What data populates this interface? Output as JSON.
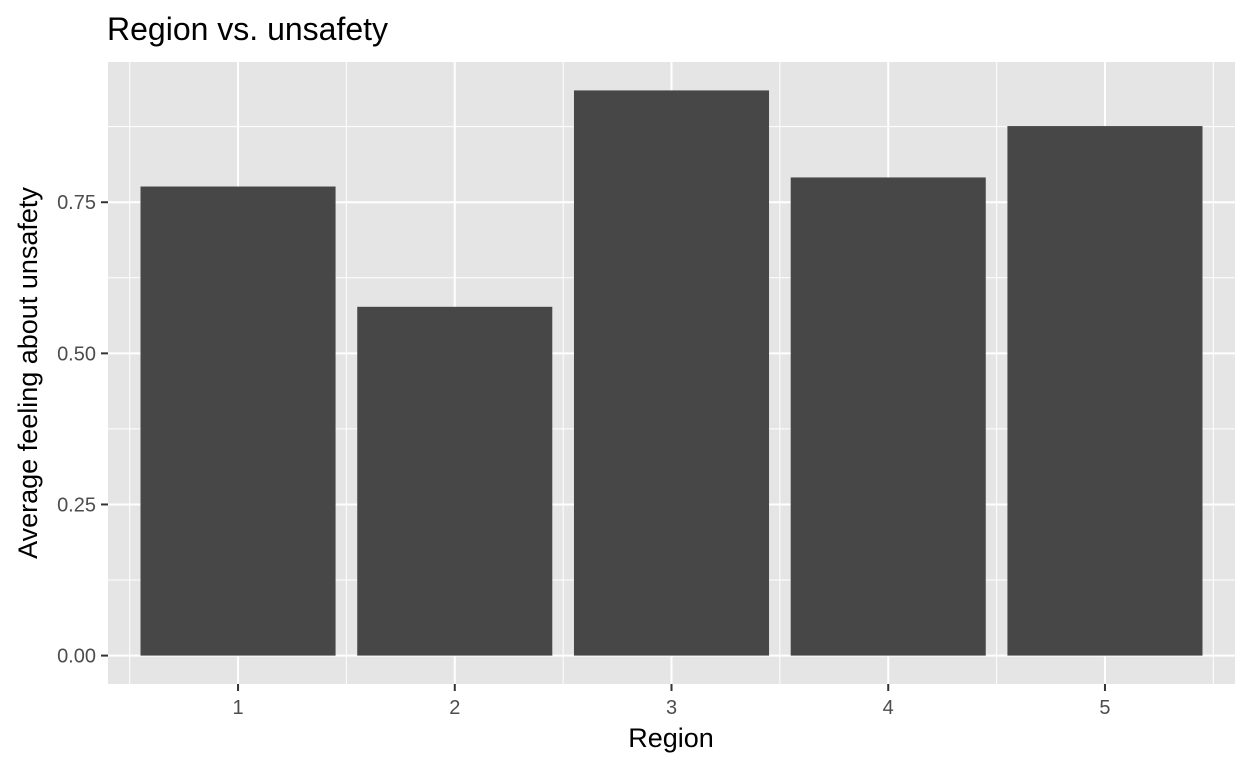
{
  "chart_data": {
    "type": "bar",
    "title": "Region vs. unsafety",
    "xlabel": "Region",
    "ylabel": "Average feeling about unsafety",
    "categories": [
      "1",
      "2",
      "3",
      "4",
      "5"
    ],
    "values": [
      0.776,
      0.577,
      0.935,
      0.791,
      0.876
    ],
    "ylim": [
      -0.047,
      0.982
    ],
    "yticks": [
      0.0,
      0.25,
      0.5,
      0.75
    ],
    "ytick_labels": [
      "0.00",
      "0.25",
      "0.50",
      "0.75"
    ],
    "grid": true,
    "legend": "none",
    "colors": {
      "panel_background": "#e5e5e5",
      "grid_line": "#ffffff",
      "bar_fill": "#474747",
      "tick_text": "#4d4d4d",
      "tick_mark": "#333333",
      "title_text": "#000000"
    }
  }
}
